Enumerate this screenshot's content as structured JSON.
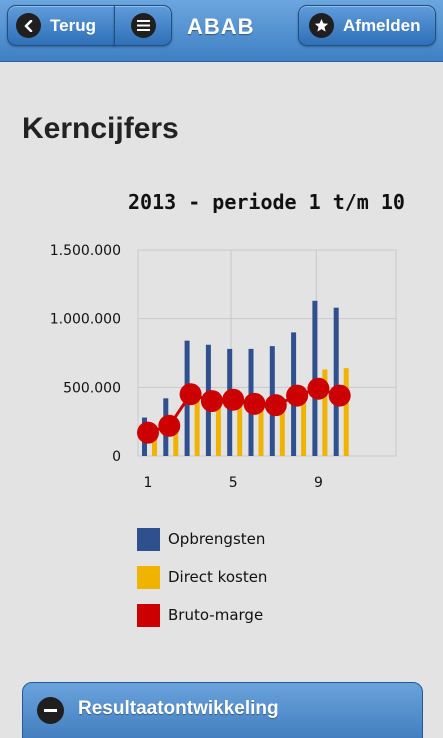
{
  "header": {
    "back_label": "Terug",
    "title": "ABAB",
    "logout_label": "Afmelden"
  },
  "page": {
    "title": "Kerncijfers"
  },
  "colors": {
    "opbrengsten": "#2f4f8f",
    "direct_kosten": "#f0b400",
    "bruto_marge": "#cc0000"
  },
  "chart_data": {
    "type": "bar",
    "title": "2013 - periode 1 t/m 10",
    "x": [
      1,
      2,
      3,
      4,
      5,
      6,
      7,
      8,
      9,
      10
    ],
    "x_tick_labels": [
      "1",
      "5",
      "9"
    ],
    "y_tick_labels": [
      "0",
      "500.000",
      "1.000.000",
      "1.500.000"
    ],
    "ylim": [
      0,
      1500000
    ],
    "grid": true,
    "legend_position": "bottom",
    "series": [
      {
        "name": "Opbrengsten",
        "kind": "bar",
        "values": [
          280000,
          420000,
          840000,
          810000,
          780000,
          780000,
          800000,
          900000,
          1130000,
          1080000
        ]
      },
      {
        "name": "Direct kosten",
        "kind": "bar",
        "values": [
          120000,
          200000,
          400000,
          390000,
          370000,
          390000,
          420000,
          440000,
          630000,
          640000
        ]
      },
      {
        "name": "Bruto-marge",
        "kind": "line",
        "values": [
          170000,
          220000,
          450000,
          400000,
          410000,
          380000,
          370000,
          440000,
          490000,
          440000
        ]
      }
    ]
  },
  "section": {
    "label": "Resultaatontwikkeling"
  }
}
